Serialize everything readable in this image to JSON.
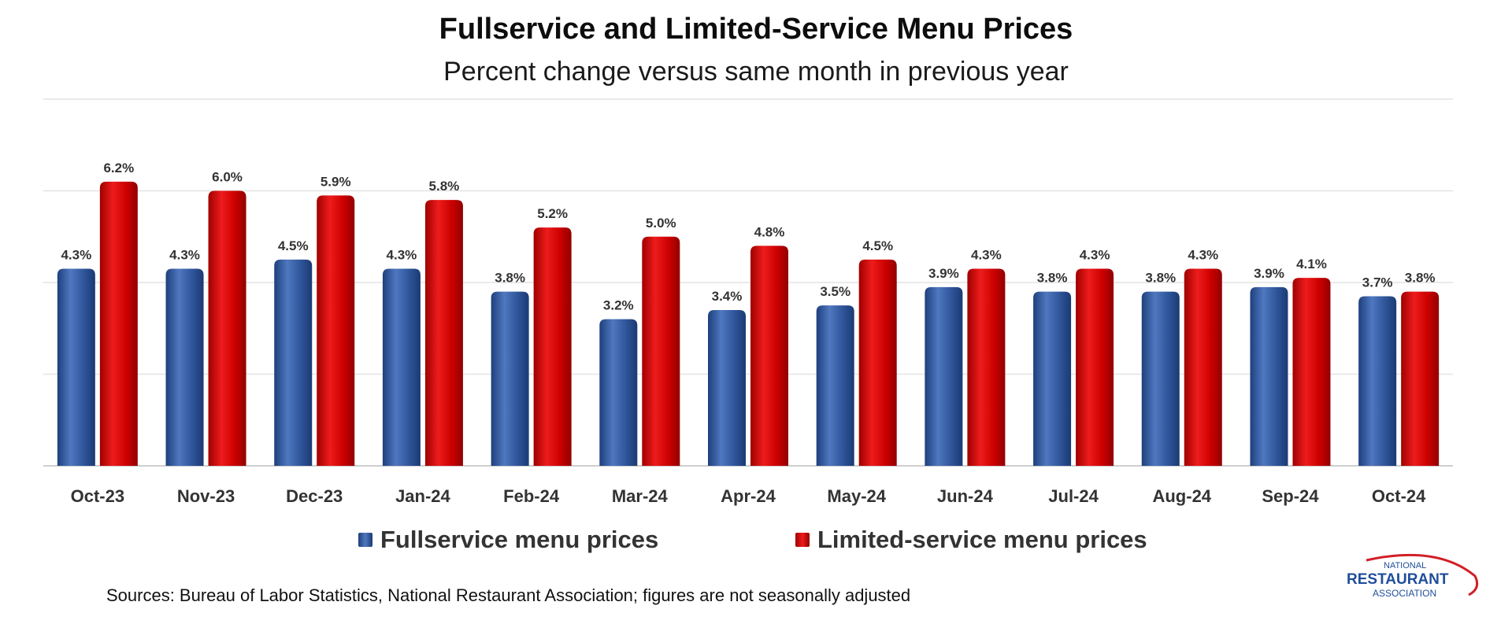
{
  "header": {
    "title": "Fullservice and Limited-Service Menu Prices",
    "subtitle": "Percent change versus same month in previous year"
  },
  "legend": {
    "series1": "Fullservice menu prices",
    "series2": "Limited-service menu prices"
  },
  "sources": "Sources: Bureau of Labor Statistics, National Restaurant Association; figures are not seasonally adjusted",
  "logo": {
    "line1": "NATIONAL",
    "line2": "RESTAURANT",
    "line3": "ASSOCIATION"
  },
  "colors": {
    "fullservice": "#2f559a",
    "limited": "#cc0000",
    "grid": "#e3e3e3",
    "logo_blue": "#1f4e9a",
    "logo_red": "#d11f26"
  },
  "chart_data": {
    "type": "bar",
    "categories": [
      "Oct-23",
      "Nov-23",
      "Dec-23",
      "Jan-24",
      "Feb-24",
      "Mar-24",
      "Apr-24",
      "May-24",
      "Jun-24",
      "Jul-24",
      "Aug-24",
      "Sep-24",
      "Oct-24"
    ],
    "series": [
      {
        "name": "Fullservice menu prices",
        "values": [
          4.3,
          4.3,
          4.5,
          4.3,
          3.8,
          3.2,
          3.4,
          3.5,
          3.9,
          3.8,
          3.8,
          3.9,
          3.7
        ]
      },
      {
        "name": "Limited-service menu prices",
        "values": [
          6.2,
          6.0,
          5.9,
          5.8,
          5.2,
          5.0,
          4.8,
          4.5,
          4.3,
          4.3,
          4.3,
          4.1,
          3.8
        ]
      }
    ],
    "data_labels": [
      [
        "4.3%",
        "4.3%",
        "4.5%",
        "4.3%",
        "3.8%",
        "3.2%",
        "3.4%",
        "3.5%",
        "3.9%",
        "3.8%",
        "3.8%",
        "3.9%",
        "3.7%"
      ],
      [
        "6.2%",
        "6.0%",
        "5.9%",
        "5.8%",
        "5.2%",
        "5.0%",
        "4.8%",
        "4.5%",
        "4.3%",
        "4.3%",
        "4.3%",
        "4.1%",
        "3.8%"
      ]
    ],
    "ylim": [
      0,
      8
    ],
    "grid": true,
    "legend_position": "bottom"
  }
}
